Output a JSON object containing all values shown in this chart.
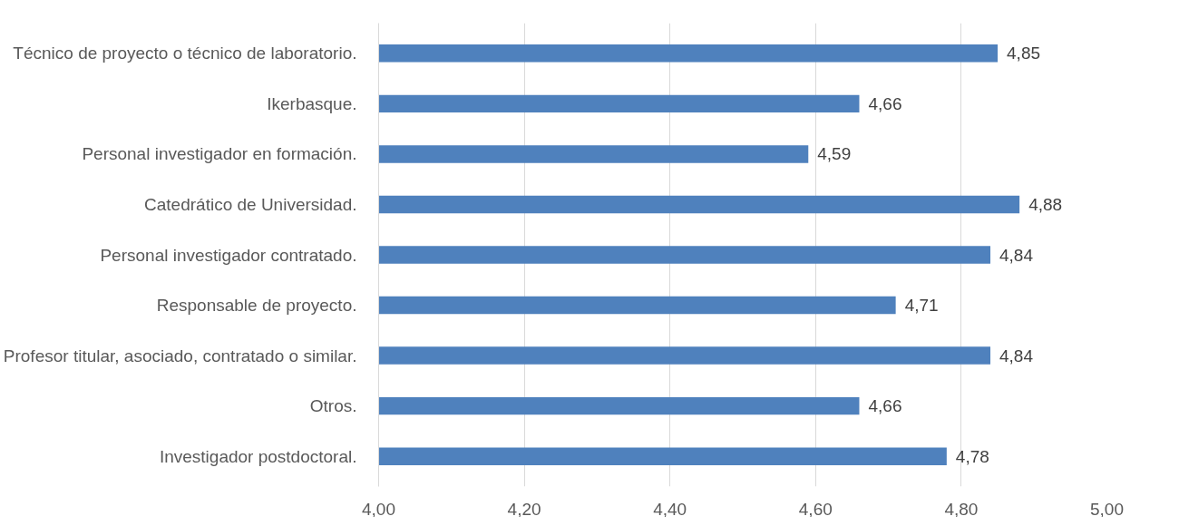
{
  "chart_data": {
    "type": "bar",
    "orientation": "horizontal",
    "categories": [
      "Técnico de proyecto o técnico de laboratorio.",
      "Ikerbasque.",
      "Personal investigador en formación.",
      "Catedrático de Universidad.",
      "Personal investigador contratado.",
      "Responsable de proyecto.",
      "Profesor titular, asociado, contratado o similar.",
      "Otros.",
      "Investigador postdoctoral."
    ],
    "values": [
      4.85,
      4.66,
      4.59,
      4.88,
      4.84,
      4.71,
      4.84,
      4.66,
      4.78
    ],
    "value_labels": [
      "4,85",
      "4,66",
      "4,59",
      "4,88",
      "4,84",
      "4,71",
      "4,84",
      "4,66",
      "4,78"
    ],
    "color": "#4f81bd",
    "xlim": [
      4,
      5
    ],
    "xticks": [
      {
        "value": 4,
        "label": "4,00"
      },
      {
        "value": 4.2,
        "label": "4,20"
      },
      {
        "value": 4.4,
        "label": "4,40"
      },
      {
        "value": 4.6,
        "label": "4,60"
      },
      {
        "value": 4.8,
        "label": "4,80"
      },
      {
        "value": 5,
        "label": "5,00"
      }
    ],
    "grid": "x"
  }
}
